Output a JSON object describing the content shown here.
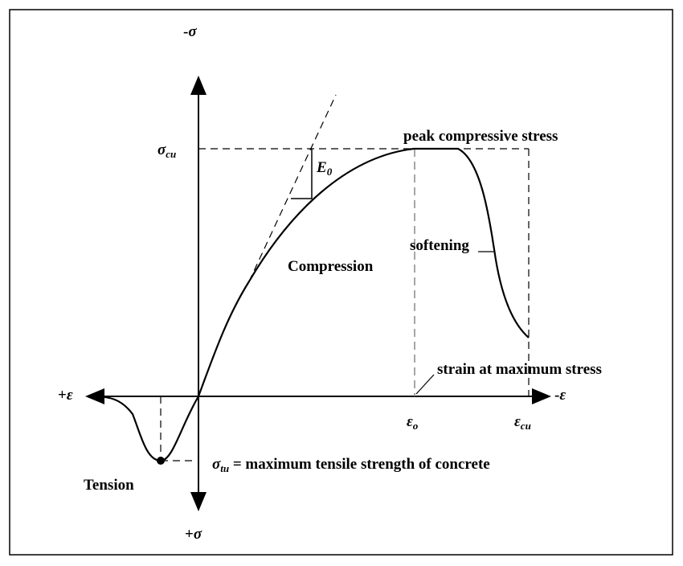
{
  "axes": {
    "y_negative": {
      "sign": "-",
      "symbol": "σ"
    },
    "y_positive": {
      "sign": "+",
      "symbol": "σ"
    },
    "x_positive": {
      "sign": "+",
      "symbol": "ε"
    },
    "x_negative": {
      "sign": "-",
      "symbol": "ε"
    }
  },
  "labels": {
    "sigma_cu": {
      "symbol": "σ",
      "subscript": "cu"
    },
    "E0": {
      "symbol": "E",
      "subscript": "0"
    },
    "peak": "peak compressive stress",
    "softening": "softening",
    "compression": "Compression",
    "strain_max": "strain at maximum stress",
    "eps0": {
      "symbol": "ε",
      "subscript": "o"
    },
    "epscu": {
      "symbol": "ε",
      "subscript": "cu"
    },
    "sigma_tu": {
      "symbol": "σ",
      "subscript": "tu",
      "text": " = maximum tensile strength of concrete"
    },
    "tension": "Tension"
  }
}
